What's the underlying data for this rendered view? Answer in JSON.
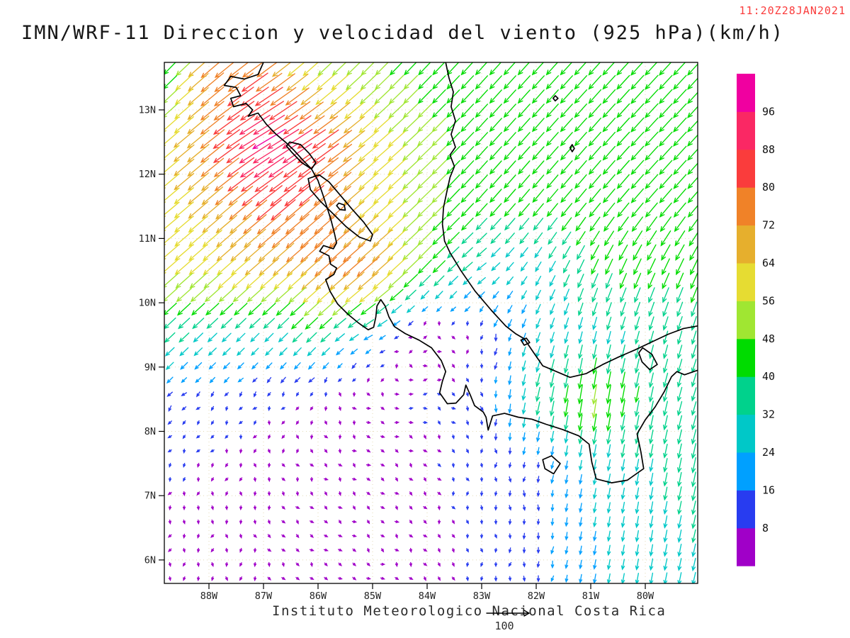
{
  "header": {
    "title": "IMN/WRF-11 Direccion y velocidad del viento (925 hPa)(km/h)",
    "timestamp": "11:20Z28JAN2021",
    "timestamp_color": "#FA3C3C"
  },
  "footer": {
    "credit": "Instituto Meteorologico Nacional Costa Rica",
    "ref_label": "100"
  },
  "chart_data": {
    "type": "vector_field",
    "title": "IMN/WRF-11 Direccion y velocidad del viento (925 hPa)(km/h)",
    "variable": "wind direction and speed",
    "level": "925 hPa",
    "units": "km/h",
    "valid_time": "11:20Z28JAN2021",
    "reference_vector": 100,
    "x_axis": {
      "ticks": [
        {
          "label": "88W",
          "lon": -88
        },
        {
          "label": "87W",
          "lon": -87
        },
        {
          "label": "86W",
          "lon": -86
        },
        {
          "label": "85W",
          "lon": -85
        },
        {
          "label": "84W",
          "lon": -84
        },
        {
          "label": "83W",
          "lon": -83
        },
        {
          "label": "82W",
          "lon": -82
        },
        {
          "label": "81W",
          "lon": -81
        },
        {
          "label": "80W",
          "lon": -80
        }
      ]
    },
    "y_axis": {
      "ticks": [
        {
          "label": "13N",
          "lat": 13
        },
        {
          "label": "12N",
          "lat": 12
        },
        {
          "label": "11N",
          "lat": 11
        },
        {
          "label": "10N",
          "lat": 10
        },
        {
          "label": "9N",
          "lat": 9
        },
        {
          "label": "8N",
          "lat": 8
        },
        {
          "label": "7N",
          "lat": 7
        },
        {
          "label": "6N",
          "lat": 6
        }
      ]
    },
    "domain": {
      "lon_min": -88.82,
      "lon_max": -79.04,
      "lat_min": 5.62,
      "lat_max": 13.74
    },
    "colorbar": {
      "levels": [
        8,
        16,
        24,
        32,
        40,
        48,
        56,
        64,
        72,
        80,
        88,
        96
      ],
      "colors": [
        "#A000C8",
        "#283CF0",
        "#00A0FF",
        "#00C8C8",
        "#00D28C",
        "#00DC00",
        "#A0E632",
        "#E6DC32",
        "#E6AF2D",
        "#F08228",
        "#FA3C3C",
        "#FA2864",
        "#F000A0"
      ]
    },
    "grid_lines": {
      "lats": [
        6,
        7,
        8,
        9,
        10,
        11,
        12,
        13
      ],
      "lons": [
        -88,
        -87,
        -86,
        -85,
        -84,
        -83,
        -82,
        -81,
        -80
      ],
      "color": "#E3DAB5"
    },
    "wind_grid": {
      "lons": [
        -88.9,
        -88,
        -87,
        -86,
        -85,
        -84,
        -83,
        -82,
        -81,
        -80,
        -79.0
      ],
      "lats": [
        13.8,
        12.5,
        11.5,
        10.5,
        9.5,
        8.5,
        7.5,
        6.5,
        5.6
      ],
      "u": [
        [
          -22,
          -55,
          -60,
          -35,
          -33,
          -31,
          -30,
          -30,
          -31,
          -32,
          -32
        ],
        [
          -44,
          -58,
          -85,
          -70,
          -47,
          -36,
          -30,
          -29,
          -30,
          -32,
          -32
        ],
        [
          -46,
          -50,
          -63,
          -60,
          -46,
          -36,
          -29,
          -27,
          -28,
          -30,
          -30
        ],
        [
          -44,
          -45,
          -48,
          -54,
          -57,
          -32,
          -22,
          -13,
          -16,
          -18,
          -18
        ],
        [
          -26,
          -23,
          -21,
          -26,
          -21,
          3,
          -2,
          -9,
          -7,
          -9,
          -10
        ],
        [
          -10,
          -8,
          -6,
          -3,
          6,
          9,
          3,
          -8,
          -8,
          -8,
          -10
        ],
        [
          -4,
          -3,
          1,
          5,
          7,
          5,
          1,
          -2,
          -5,
          -6,
          -8
        ],
        [
          -2,
          -2,
          2,
          5,
          6,
          4,
          1,
          -2,
          -4,
          -5,
          -7
        ],
        [
          -2,
          -2,
          2,
          5,
          6,
          3,
          0,
          -3,
          -4,
          -5,
          -7
        ]
      ],
      "v": [
        [
          -26,
          -48,
          -45,
          -35,
          -34,
          -33,
          -33,
          -33,
          -34,
          -35,
          -35
        ],
        [
          -38,
          -47,
          -50,
          -48,
          -40,
          -35,
          -33,
          -33,
          -34,
          -35,
          -35
        ],
        [
          -38,
          -43,
          -52,
          -52,
          -41,
          -35,
          -33,
          -32,
          -34,
          -35,
          -35
        ],
        [
          -38,
          -40,
          -42,
          -48,
          -50,
          -33,
          -17,
          -22,
          -37,
          -40,
          -40
        ],
        [
          -25,
          -22,
          -21,
          -25,
          -11,
          2,
          -11,
          -24,
          -29,
          -31,
          -33
        ],
        [
          -10,
          -8,
          -7,
          -7,
          -3,
          -2,
          -11,
          -35,
          -52,
          -39,
          -32
        ],
        [
          -8,
          -7,
          -8,
          -6,
          -4,
          -6,
          -10,
          -14,
          -26,
          -30,
          -39
        ],
        [
          -7,
          -7,
          -7,
          -5,
          -4,
          -6,
          -9,
          -13,
          -23,
          -28,
          -32
        ],
        [
          -7,
          -7,
          -7,
          -5,
          -4,
          -6,
          -9,
          -13,
          -22,
          -27,
          -31
        ]
      ]
    }
  },
  "map": {
    "coast_color": "#000000",
    "coastlines": [
      {
        "name": "pacific-coast",
        "closed": false,
        "pts": [
          [
            -87.0,
            13.74
          ],
          [
            -87.1,
            13.55
          ],
          [
            -87.35,
            13.48
          ],
          [
            -87.6,
            13.52
          ],
          [
            -87.72,
            13.38
          ],
          [
            -87.5,
            13.35
          ],
          [
            -87.42,
            13.22
          ],
          [
            -87.6,
            13.18
          ],
          [
            -87.55,
            13.05
          ],
          [
            -87.32,
            13.1
          ],
          [
            -87.2,
            13.0
          ],
          [
            -87.28,
            12.9
          ],
          [
            -87.1,
            12.95
          ],
          [
            -86.95,
            12.78
          ],
          [
            -86.78,
            12.63
          ],
          [
            -86.6,
            12.5
          ],
          [
            -86.45,
            12.38
          ],
          [
            -86.28,
            12.22
          ],
          [
            -86.12,
            12.08
          ],
          [
            -86.0,
            11.9
          ],
          [
            -85.92,
            11.7
          ],
          [
            -85.84,
            11.5
          ],
          [
            -85.76,
            11.28
          ],
          [
            -85.7,
            11.08
          ],
          [
            -85.66,
            10.93
          ],
          [
            -85.72,
            10.84
          ],
          [
            -85.9,
            10.89
          ],
          [
            -85.97,
            10.8
          ],
          [
            -85.8,
            10.73
          ],
          [
            -85.77,
            10.6
          ],
          [
            -85.66,
            10.54
          ],
          [
            -85.71,
            10.44
          ],
          [
            -85.86,
            10.36
          ],
          [
            -85.78,
            10.18
          ],
          [
            -85.64,
            9.98
          ],
          [
            -85.45,
            9.82
          ],
          [
            -85.25,
            9.68
          ],
          [
            -85.08,
            9.58
          ],
          [
            -84.98,
            9.62
          ],
          [
            -84.94,
            9.78
          ],
          [
            -84.92,
            9.95
          ],
          [
            -84.85,
            10.05
          ],
          [
            -84.77,
            9.95
          ],
          [
            -84.7,
            9.78
          ],
          [
            -84.6,
            9.63
          ],
          [
            -84.4,
            9.52
          ],
          [
            -84.15,
            9.42
          ],
          [
            -83.92,
            9.3
          ],
          [
            -83.74,
            9.1
          ],
          [
            -83.66,
            8.93
          ],
          [
            -83.72,
            8.78
          ],
          [
            -83.77,
            8.6
          ],
          [
            -83.63,
            8.43
          ],
          [
            -83.47,
            8.44
          ],
          [
            -83.33,
            8.57
          ],
          [
            -83.29,
            8.72
          ],
          [
            -83.21,
            8.57
          ],
          [
            -83.13,
            8.4
          ],
          [
            -82.97,
            8.3
          ],
          [
            -82.92,
            8.22
          ],
          [
            -82.88,
            8.02
          ],
          [
            -82.8,
            8.24
          ],
          [
            -82.58,
            8.28
          ],
          [
            -82.33,
            8.22
          ],
          [
            -82.08,
            8.19
          ],
          [
            -81.82,
            8.11
          ],
          [
            -81.52,
            8.03
          ],
          [
            -81.22,
            7.93
          ],
          [
            -81.03,
            7.8
          ],
          [
            -80.98,
            7.52
          ],
          [
            -80.9,
            7.26
          ],
          [
            -80.62,
            7.2
          ],
          [
            -80.33,
            7.24
          ],
          [
            -80.03,
            7.42
          ],
          [
            -80.08,
            7.68
          ],
          [
            -80.15,
            7.96
          ],
          [
            -80.0,
            8.18
          ],
          [
            -79.82,
            8.38
          ],
          [
            -79.65,
            8.62
          ],
          [
            -79.52,
            8.85
          ],
          [
            -79.42,
            8.93
          ],
          [
            -79.28,
            8.88
          ],
          [
            -79.04,
            8.95
          ]
        ]
      },
      {
        "name": "caribbean-coast",
        "closed": false,
        "pts": [
          [
            -83.66,
            13.74
          ],
          [
            -83.6,
            13.5
          ],
          [
            -83.52,
            13.28
          ],
          [
            -83.56,
            13.05
          ],
          [
            -83.48,
            12.83
          ],
          [
            -83.56,
            12.62
          ],
          [
            -83.48,
            12.42
          ],
          [
            -83.58,
            12.3
          ],
          [
            -83.5,
            12.12
          ],
          [
            -83.58,
            11.95
          ],
          [
            -83.64,
            11.72
          ],
          [
            -83.7,
            11.48
          ],
          [
            -83.72,
            11.22
          ],
          [
            -83.68,
            10.96
          ],
          [
            -83.58,
            10.78
          ],
          [
            -83.38,
            10.5
          ],
          [
            -83.12,
            10.18
          ],
          [
            -82.82,
            9.88
          ],
          [
            -82.56,
            9.64
          ],
          [
            -82.38,
            9.52
          ],
          [
            -82.22,
            9.44
          ],
          [
            -82.06,
            9.24
          ],
          [
            -81.88,
            9.02
          ],
          [
            -81.66,
            8.94
          ],
          [
            -81.38,
            8.84
          ],
          [
            -81.08,
            8.9
          ],
          [
            -80.78,
            9.04
          ],
          [
            -80.48,
            9.16
          ],
          [
            -80.18,
            9.27
          ],
          [
            -79.88,
            9.39
          ],
          [
            -79.58,
            9.51
          ],
          [
            -79.3,
            9.6
          ],
          [
            -79.04,
            9.64
          ]
        ]
      },
      {
        "name": "lake-nicaragua",
        "closed": true,
        "pts": [
          [
            -86.18,
            11.93
          ],
          [
            -85.98,
            11.99
          ],
          [
            -85.8,
            11.88
          ],
          [
            -85.6,
            11.68
          ],
          [
            -85.38,
            11.46
          ],
          [
            -85.16,
            11.25
          ],
          [
            -85.0,
            11.06
          ],
          [
            -85.04,
            10.96
          ],
          [
            -85.24,
            11.02
          ],
          [
            -85.48,
            11.18
          ],
          [
            -85.72,
            11.38
          ],
          [
            -85.96,
            11.58
          ],
          [
            -86.14,
            11.76
          ]
        ]
      },
      {
        "name": "ometepe-island",
        "closed": true,
        "pts": [
          [
            -85.62,
            11.55
          ],
          [
            -85.52,
            11.52
          ],
          [
            -85.5,
            11.44
          ],
          [
            -85.6,
            11.45
          ],
          [
            -85.66,
            11.51
          ]
        ]
      },
      {
        "name": "lake-managua",
        "closed": true,
        "pts": [
          [
            -86.52,
            12.5
          ],
          [
            -86.32,
            12.46
          ],
          [
            -86.16,
            12.32
          ],
          [
            -86.04,
            12.18
          ],
          [
            -86.12,
            12.08
          ],
          [
            -86.3,
            12.18
          ],
          [
            -86.48,
            12.34
          ],
          [
            -86.58,
            12.44
          ]
        ]
      },
      {
        "name": "coiba-island",
        "closed": true,
        "pts": [
          [
            -81.88,
            7.56
          ],
          [
            -81.72,
            7.62
          ],
          [
            -81.56,
            7.5
          ],
          [
            -81.68,
            7.34
          ],
          [
            -81.84,
            7.42
          ]
        ]
      },
      {
        "name": "gatun-lake",
        "closed": true,
        "pts": [
          [
            -80.05,
            9.3
          ],
          [
            -79.88,
            9.2
          ],
          [
            -79.78,
            9.04
          ],
          [
            -79.92,
            8.96
          ],
          [
            -80.06,
            9.08
          ],
          [
            -80.12,
            9.22
          ]
        ]
      },
      {
        "name": "bocas-islands",
        "closed": true,
        "pts": [
          [
            -82.28,
            9.42
          ],
          [
            -82.18,
            9.45
          ],
          [
            -82.12,
            9.38
          ],
          [
            -82.22,
            9.34
          ]
        ]
      },
      {
        "name": "providencia-island",
        "closed": true,
        "pts": [
          [
            -81.65,
            13.22
          ],
          [
            -81.6,
            13.18
          ],
          [
            -81.65,
            13.14
          ],
          [
            -81.69,
            13.18
          ]
        ]
      },
      {
        "name": "san-andres-island",
        "closed": true,
        "pts": [
          [
            -81.34,
            12.46
          ],
          [
            -81.3,
            12.4
          ],
          [
            -81.34,
            12.35
          ],
          [
            -81.38,
            12.41
          ]
        ]
      }
    ]
  }
}
